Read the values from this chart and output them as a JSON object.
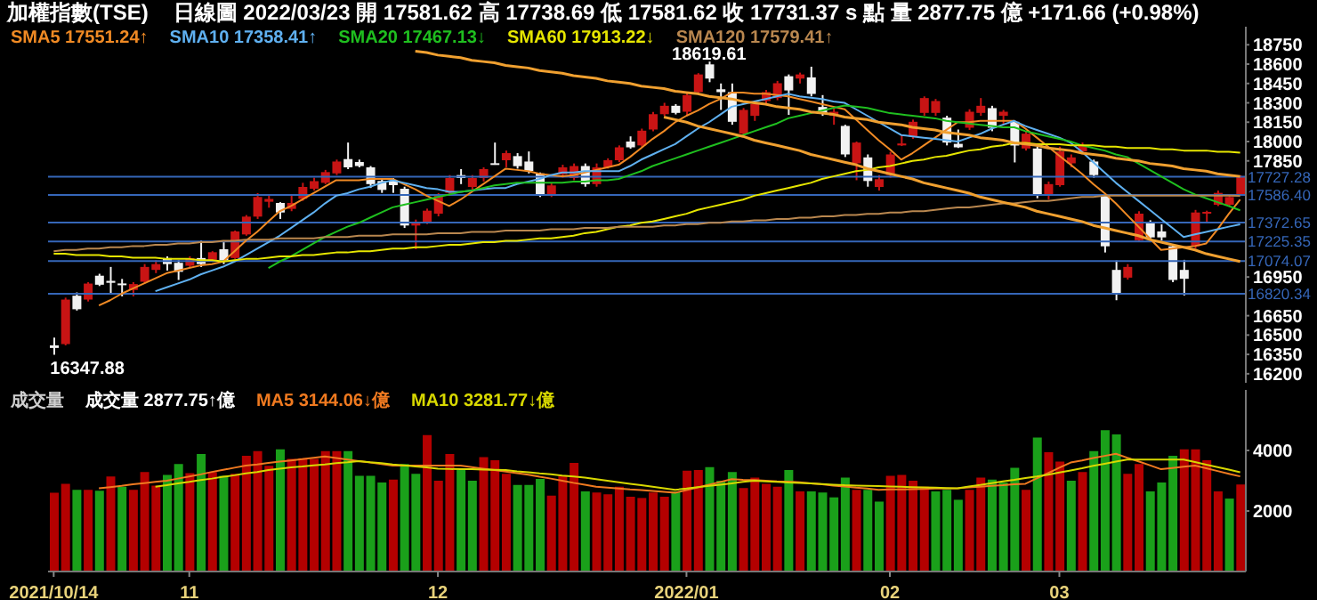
{
  "chart_data": [
    {
      "type": "candlestick",
      "title": "加權指數(TSE)",
      "subtitle": "日線圖 2022/03/23 開 17581.62 高 17738.69 低 17581.62 收 17731.37 s 點 量 2877.75 億 +171.66 (+0.98%)",
      "categories": [
        "2021/10/14",
        null,
        null,
        null,
        null,
        null,
        null,
        null,
        null,
        null,
        null,
        null,
        "11",
        null,
        null,
        null,
        null,
        null,
        null,
        null,
        null,
        null,
        null,
        null,
        null,
        null,
        null,
        null,
        null,
        null,
        null,
        null,
        null,
        null,
        "12",
        null,
        null,
        null,
        null,
        null,
        null,
        null,
        null,
        null,
        null,
        null,
        null,
        null,
        null,
        null,
        null,
        null,
        null,
        null,
        null,
        null,
        "2022/01",
        null,
        null,
        null,
        null,
        null,
        null,
        null,
        null,
        null,
        null,
        null,
        null,
        null,
        null,
        null,
        null,
        null,
        "02",
        null,
        null,
        null,
        null,
        null,
        null,
        null,
        null,
        null,
        null,
        null,
        null,
        null,
        null,
        "03",
        null,
        null,
        null,
        null,
        null,
        null,
        null,
        null,
        null,
        null,
        null,
        null,
        null,
        null,
        null,
        null
      ],
      "ohlc": [
        [
          16420,
          16480,
          16347.88,
          16400
        ],
        [
          16430,
          16790,
          16420,
          16775
        ],
        [
          16805,
          16830,
          16690,
          16700
        ],
        [
          16775,
          16910,
          16760,
          16899
        ],
        [
          16960,
          16975,
          16880,
          16890
        ],
        [
          16920,
          17028,
          16820,
          16905
        ],
        [
          16900,
          16935,
          16800,
          16890
        ],
        [
          16850,
          16910,
          16800,
          16895
        ],
        [
          16913,
          17050,
          16900,
          17028
        ],
        [
          17005,
          17080,
          16980,
          17050
        ],
        [
          17097,
          17110,
          17000,
          17050
        ],
        [
          17060,
          17080,
          16927,
          16990
        ],
        [
          17037,
          17110,
          17020,
          17096
        ],
        [
          17097,
          17234,
          17028,
          17050
        ],
        [
          17083,
          17150,
          17070,
          17142
        ],
        [
          17165,
          17220,
          17050,
          17073
        ],
        [
          17097,
          17310,
          17090,
          17303
        ],
        [
          17280,
          17430,
          17270,
          17418
        ],
        [
          17418,
          17600,
          17400,
          17570
        ],
        [
          17533,
          17588,
          17487,
          17555
        ],
        [
          17524,
          17530,
          17400,
          17450
        ],
        [
          17478,
          17588,
          17460,
          17524
        ],
        [
          17556,
          17680,
          17540,
          17648
        ],
        [
          17634,
          17720,
          17620,
          17693
        ],
        [
          17680,
          17780,
          17670,
          17763
        ],
        [
          17753,
          17860,
          17740,
          17845
        ],
        [
          17864,
          17992,
          17786,
          17800
        ],
        [
          17841,
          17860,
          17800,
          17810
        ],
        [
          17800,
          17810,
          17640,
          17670
        ],
        [
          17694,
          17717,
          17602,
          17625
        ],
        [
          17694,
          17717,
          17602,
          17662
        ],
        [
          17634,
          17650,
          17330,
          17349
        ],
        [
          17349,
          17395,
          17165,
          17370
        ],
        [
          17372,
          17480,
          17360,
          17464
        ],
        [
          17441,
          17600,
          17420,
          17579
        ],
        [
          17602,
          17740,
          17590,
          17717
        ],
        [
          17740,
          17786,
          17670,
          17717
        ],
        [
          17648,
          17740,
          17620,
          17717
        ],
        [
          17717,
          17800,
          17690,
          17786
        ],
        [
          17832,
          17992,
          17820,
          17826
        ],
        [
          17855,
          17930,
          17800,
          17910
        ],
        [
          17887,
          17910,
          17790,
          17809
        ],
        [
          17845,
          17923,
          17753,
          17772
        ],
        [
          17753,
          17760,
          17570,
          17588
        ],
        [
          17579,
          17680,
          17570,
          17660
        ],
        [
          17746,
          17820,
          17720,
          17800
        ],
        [
          17717,
          17830,
          17700,
          17810
        ],
        [
          17810,
          17830,
          17650,
          17670
        ],
        [
          17670,
          17830,
          17650,
          17800
        ],
        [
          17800,
          17870,
          17790,
          17855
        ],
        [
          17855,
          17970,
          17840,
          17955
        ],
        [
          18000,
          18040,
          17945,
          17955
        ],
        [
          17970,
          18100,
          17960,
          18084
        ],
        [
          18093,
          18230,
          18080,
          18212
        ],
        [
          18212,
          18300,
          18200,
          18277
        ],
        [
          18277,
          18290,
          18210,
          18222
        ],
        [
          18231,
          18383,
          18199,
          18360
        ],
        [
          18383,
          18530,
          18370,
          18520
        ],
        [
          18598,
          18619.61,
          18460,
          18488
        ],
        [
          18405,
          18450,
          18245,
          18383
        ],
        [
          18383,
          18450,
          18130,
          18153
        ],
        [
          18061,
          18260,
          18040,
          18245
        ],
        [
          18199,
          18310,
          18160,
          18290
        ],
        [
          18314,
          18400,
          18290,
          18383
        ],
        [
          18337,
          18470,
          18320,
          18452
        ],
        [
          18506,
          18520,
          18207,
          18396
        ],
        [
          18488,
          18534,
          18450,
          18520
        ],
        [
          18497,
          18580,
          18350,
          18369
        ],
        [
          18268,
          18360,
          18199,
          18222
        ],
        [
          18199,
          18268,
          18130,
          18231
        ],
        [
          18121,
          18130,
          17880,
          17900
        ],
        [
          17831,
          18000,
          17700,
          17992
        ],
        [
          17877,
          17900,
          17650,
          17694
        ],
        [
          17648,
          17740,
          17620,
          17708
        ],
        [
          17740,
          17920,
          17720,
          17900
        ],
        [
          17970,
          18052,
          17965,
          17985
        ],
        [
          18038,
          18170,
          18020,
          18153
        ],
        [
          18222,
          18350,
          18200,
          18337
        ],
        [
          18222,
          18330,
          18199,
          18314
        ],
        [
          18185,
          18200,
          17970,
          17992
        ],
        [
          17982,
          18093,
          17950,
          17955
        ],
        [
          18107,
          18250,
          18090,
          18231
        ],
        [
          18222,
          18337,
          18199,
          18277
        ],
        [
          18259,
          18277,
          18080,
          18107
        ],
        [
          18199,
          18245,
          18130,
          18231
        ],
        [
          18153,
          18160,
          17838,
          17969
        ],
        [
          17946,
          18080,
          17930,
          18061
        ],
        [
          17946,
          17960,
          17560,
          17579
        ],
        [
          17579,
          17690,
          17550,
          17670
        ],
        [
          17662,
          17960,
          17650,
          17923
        ],
        [
          17831,
          17900,
          17800,
          17877
        ],
        [
          17923,
          17992,
          17900,
          17969
        ],
        [
          17845,
          17860,
          17720,
          17740
        ],
        [
          17579,
          17590,
          17140,
          17188
        ],
        [
          17005,
          17078,
          16770,
          16821
        ],
        [
          16945,
          17050,
          16930,
          17028
        ],
        [
          17235,
          17460,
          17220,
          17441
        ],
        [
          17372,
          17390,
          17240,
          17257
        ],
        [
          17303,
          17358,
          17234,
          17257
        ],
        [
          17188,
          17200,
          16910,
          16927
        ],
        [
          17005,
          17083,
          16807,
          16936
        ],
        [
          17188,
          17470,
          17170,
          17450
        ],
        [
          17441,
          17464,
          17372,
          17455
        ],
        [
          17510,
          17620,
          17500,
          17602
        ],
        [
          17510,
          17590,
          17500,
          17570
        ],
        [
          17581.62,
          17738.69,
          17581.62,
          17731.37
        ]
      ],
      "series": [
        {
          "name": "SMA5 17551.24↑",
          "type": "line",
          "color": "#f08a24",
          "values": [
            null,
            null,
            null,
            null,
            16730,
            16770,
            16820,
            16860,
            16900,
            16940,
            16980,
            17000,
            17020,
            17040,
            17050,
            17070,
            17150,
            17230,
            17300,
            17380,
            17460,
            17500,
            17550,
            17600,
            17650,
            17700,
            17700,
            17700,
            17710,
            17710,
            17710,
            17670,
            17630,
            17580,
            17540,
            17500,
            17550,
            17610,
            17670,
            17730,
            17790,
            17780,
            17770,
            17750,
            17740,
            17730,
            17740,
            17760,
            17780,
            17800,
            17820,
            17880,
            17950,
            18020,
            18080,
            18150,
            18200,
            18240,
            18290,
            18330,
            18380,
            18380,
            18370,
            18370,
            18360,
            18350,
            18330,
            18310,
            18290,
            18270,
            18250,
            18170,
            18090,
            18010,
            17940,
            17860,
            17910,
            17970,
            18030,
            18090,
            18150,
            18150,
            18160,
            18160,
            18160,
            18160,
            18100,
            18030,
            17960,
            17890,
            17820,
            17750,
            17670,
            17600,
            17520,
            17430,
            17340,
            17250,
            17160,
            17170,
            17180,
            17190,
            17210,
            17320,
            17440,
            17551.24
          ]
        },
        {
          "name": "SMA10 17358.41↑",
          "type": "line",
          "color": "#5fb0f0",
          "values": [
            null,
            null,
            null,
            null,
            null,
            null,
            null,
            null,
            null,
            16840,
            16870,
            16900,
            16930,
            16970,
            17000,
            17030,
            17070,
            17120,
            17170,
            17220,
            17270,
            17330,
            17390,
            17450,
            17520,
            17580,
            17600,
            17630,
            17650,
            17680,
            17700,
            17680,
            17660,
            17640,
            17630,
            17610,
            17610,
            17620,
            17630,
            17640,
            17640,
            17670,
            17690,
            17710,
            17740,
            17760,
            17760,
            17770,
            17770,
            17770,
            17770,
            17810,
            17860,
            17900,
            17940,
            17980,
            18040,
            18100,
            18150,
            18210,
            18270,
            18290,
            18310,
            18330,
            18350,
            18370,
            18350,
            18340,
            18330,
            18310,
            18300,
            18250,
            18200,
            18150,
            18100,
            18050,
            18040,
            18030,
            18020,
            18010,
            18000,
            18030,
            18060,
            18100,
            18130,
            18160,
            18120,
            18090,
            18060,
            18030,
            17990,
            17920,
            17840,
            17760,
            17680,
            17610,
            17540,
            17470,
            17400,
            17330,
            17260,
            17280,
            17300,
            17320,
            17340,
            17358.41
          ]
        },
        {
          "name": "SMA20 17467.13↓",
          "type": "line",
          "color": "#1fbf1f",
          "values": [
            null,
            null,
            null,
            null,
            null,
            null,
            null,
            null,
            null,
            null,
            null,
            null,
            null,
            null,
            null,
            null,
            null,
            null,
            null,
            17020,
            17070,
            17110,
            17160,
            17210,
            17260,
            17300,
            17340,
            17370,
            17410,
            17450,
            17490,
            17510,
            17530,
            17550,
            17570,
            17590,
            17610,
            17620,
            17640,
            17660,
            17670,
            17680,
            17680,
            17680,
            17680,
            17680,
            17690,
            17690,
            17700,
            17700,
            17710,
            17740,
            17770,
            17810,
            17840,
            17870,
            17900,
            17930,
            17960,
            17990,
            18020,
            18050,
            18080,
            18110,
            18140,
            18180,
            18200,
            18220,
            18240,
            18260,
            18280,
            18270,
            18260,
            18240,
            18220,
            18210,
            18200,
            18190,
            18180,
            18160,
            18150,
            18140,
            18130,
            18120,
            18110,
            18110,
            18080,
            18060,
            18040,
            18020,
            18000,
            17970,
            17950,
            17930,
            17900,
            17880,
            17830,
            17780,
            17730,
            17680,
            17630,
            17590,
            17560,
            17530,
            17500,
            17467.13
          ]
        },
        {
          "name": "SMA60 17913.22↓",
          "type": "line",
          "color": "#e6e600",
          "values": [
            17130,
            17130,
            17120,
            17120,
            17120,
            17110,
            17110,
            17100,
            17100,
            17100,
            17090,
            17090,
            17090,
            17080,
            17080,
            17070,
            17080,
            17090,
            17090,
            17100,
            17110,
            17110,
            17120,
            17120,
            17130,
            17140,
            17140,
            17150,
            17150,
            17160,
            17170,
            17170,
            17180,
            17180,
            17190,
            17200,
            17200,
            17210,
            17220,
            17220,
            17230,
            17230,
            17240,
            17250,
            17250,
            17260,
            17270,
            17290,
            17300,
            17320,
            17340,
            17350,
            17370,
            17380,
            17400,
            17420,
            17440,
            17470,
            17490,
            17510,
            17530,
            17550,
            17580,
            17600,
            17620,
            17640,
            17660,
            17680,
            17710,
            17730,
            17750,
            17770,
            17780,
            17800,
            17810,
            17830,
            17850,
            17860,
            17880,
            17890,
            17910,
            17930,
            17940,
            17960,
            17970,
            17990,
            17990,
            17980,
            17980,
            17980,
            17970,
            17970,
            17970,
            17960,
            17960,
            17950,
            17950,
            17950,
            17940,
            17940,
            17930,
            17930,
            17930,
            17920,
            17920,
            17913.22
          ]
        },
        {
          "name": "SMA120 17579.41↑",
          "type": "line",
          "color": "#b9874f",
          "values": [
            17150,
            17160,
            17160,
            17170,
            17170,
            17180,
            17180,
            17190,
            17190,
            17200,
            17200,
            17210,
            17210,
            17220,
            17220,
            17230,
            17230,
            17240,
            17240,
            17240,
            17250,
            17250,
            17250,
            17250,
            17260,
            17260,
            17260,
            17270,
            17270,
            17270,
            17280,
            17280,
            17280,
            17280,
            17290,
            17290,
            17290,
            17300,
            17300,
            17300,
            17310,
            17310,
            17310,
            17310,
            17320,
            17320,
            17320,
            17330,
            17330,
            17330,
            17340,
            17340,
            17340,
            17340,
            17350,
            17350,
            17360,
            17360,
            17370,
            17370,
            17380,
            17380,
            17390,
            17390,
            17400,
            17400,
            17410,
            17410,
            17420,
            17420,
            17430,
            17430,
            17440,
            17440,
            17450,
            17450,
            17460,
            17460,
            17470,
            17480,
            17490,
            17490,
            17500,
            17510,
            17520,
            17520,
            17530,
            17540,
            17540,
            17550,
            17560,
            17570,
            17570,
            17580,
            17580,
            17580,
            17580,
            17580,
            17580,
            17580,
            17580,
            17580,
            17580,
            17580,
            17580,
            17579.41
          ]
        },
        {
          "type": "line",
          "color": "#f0a030",
          "values": [
            null,
            null,
            null,
            null,
            null,
            null,
            null,
            null,
            null,
            null,
            null,
            null,
            null,
            null,
            null,
            null,
            null,
            null,
            null,
            null,
            null,
            null,
            null,
            null,
            null,
            null,
            null,
            null,
            null,
            null,
            null,
            null,
            18700,
            18690,
            18670,
            18660,
            18650,
            18630,
            18620,
            18610,
            18590,
            18580,
            18570,
            18550,
            18540,
            18530,
            18510,
            18500,
            18490,
            18470,
            18460,
            18450,
            18430,
            18420,
            18410,
            18390,
            18380,
            18370,
            18350,
            18340,
            18330,
            18310,
            18300,
            18290,
            18270,
            18260,
            18250,
            18230,
            18220,
            18210,
            18190,
            18180,
            18170,
            18150,
            18140,
            18130,
            18110,
            18100,
            18090,
            18070,
            18060,
            18050,
            18030,
            18020,
            18010,
            17990,
            17980,
            17970,
            17950,
            17940,
            17930,
            17910,
            17900,
            17890,
            17870,
            17860,
            17850,
            17830,
            17820,
            17810,
            17790,
            17780,
            17770,
            17750,
            17740,
            17730
          ]
        },
        {
          "type": "line",
          "color": "#f0a030",
          "values": [
            null,
            null,
            null,
            null,
            null,
            null,
            null,
            null,
            null,
            null,
            null,
            null,
            null,
            null,
            null,
            null,
            null,
            null,
            null,
            null,
            null,
            null,
            null,
            null,
            null,
            null,
            null,
            null,
            null,
            null,
            null,
            null,
            null,
            null,
            null,
            null,
            null,
            null,
            null,
            null,
            null,
            null,
            null,
            null,
            null,
            null,
            null,
            null,
            null,
            null,
            null,
            null,
            null,
            null,
            18190,
            18170,
            18150,
            18120,
            18100,
            18080,
            18060,
            18040,
            18010,
            17990,
            17970,
            17950,
            17930,
            17900,
            17880,
            17860,
            17840,
            17820,
            17790,
            17770,
            17750,
            17730,
            17710,
            17680,
            17660,
            17640,
            17620,
            17600,
            17570,
            17550,
            17530,
            17510,
            17490,
            17460,
            17440,
            17420,
            17400,
            17380,
            17350,
            17330,
            17310,
            17290,
            17270,
            17240,
            17220,
            17200,
            17180,
            17160,
            17130,
            17110,
            17090,
            17070
          ]
        }
      ],
      "ref_lines": [
        {
          "axis": "y",
          "value": 17727.28,
          "label": "17727.28",
          "color": "#3566b8"
        },
        {
          "axis": "y",
          "value": 17586.4,
          "label": "17586.40",
          "color": "#3566b8"
        },
        {
          "axis": "y",
          "value": 17372.65,
          "label": "17372.65",
          "color": "#3566b8"
        },
        {
          "axis": "y",
          "value": 17225.35,
          "label": "17225.35",
          "color": "#3566b8"
        },
        {
          "axis": "y",
          "value": 17074.07,
          "label": "17074.07",
          "color": "#3566b8"
        },
        {
          "axis": "y",
          "value": 16820.34,
          "label": "16820.34",
          "color": "#3566b8"
        }
      ],
      "annotations": [
        {
          "text": "18619.61",
          "y": 18619.61
        },
        {
          "text": "16347.88",
          "x": "2021/10/14",
          "y": 16347.88
        }
      ],
      "ylim": [
        16130,
        18890
      ],
      "yticks": [
        16200,
        16350,
        16500,
        16650,
        16950,
        17850,
        18000,
        18150,
        18300,
        18450,
        18600,
        18750
      ],
      "tick_labels": "y",
      "legend": "top left",
      "grid": false
    },
    {
      "type": "bar",
      "title": "成交量",
      "categories": [
        "2021/10/14",
        null,
        null,
        null,
        null,
        null,
        null,
        null,
        null,
        null,
        null,
        null,
        "11",
        null,
        null,
        null,
        null,
        null,
        null,
        null,
        null,
        null,
        null,
        null,
        null,
        null,
        null,
        null,
        null,
        null,
        null,
        null,
        null,
        null,
        "12",
        null,
        null,
        null,
        null,
        null,
        null,
        null,
        null,
        null,
        null,
        null,
        null,
        null,
        null,
        null,
        null,
        null,
        null,
        null,
        null,
        null,
        "2022/01",
        null,
        null,
        null,
        null,
        null,
        null,
        null,
        null,
        null,
        null,
        null,
        null,
        null,
        null,
        null,
        null,
        null,
        "02",
        null,
        null,
        null,
        null,
        null,
        null,
        null,
        null,
        null,
        null,
        null,
        null,
        null,
        null,
        "03",
        null,
        null,
        null,
        null,
        null,
        null,
        null,
        null,
        null,
        null,
        null,
        null,
        null,
        null,
        null,
        null
      ],
      "series": [
        {
          "name": "成交量 2877.75↑億",
          "type": "bar",
          "values": [
            2600,
            2900,
            2700,
            2700,
            2670,
            3140,
            2800,
            2700,
            3290,
            2840,
            3190,
            3550,
            3250,
            3880,
            3290,
            3160,
            3230,
            3820,
            3980,
            3490,
            4040,
            3720,
            3740,
            3720,
            3980,
            3980,
            3980,
            3160,
            3160,
            2940,
            3040,
            3550,
            3230,
            4510,
            3000,
            3880,
            3350,
            3000,
            3780,
            3680,
            3230,
            2860,
            2860,
            3060,
            2510,
            3160,
            3590,
            2650,
            2610,
            2550,
            2800,
            2470,
            2430,
            2610,
            2470,
            2650,
            3330,
            3350,
            3450,
            3000,
            3290,
            2760,
            3100,
            2900,
            2800,
            3350,
            2650,
            2650,
            2610,
            2450,
            3100,
            2700,
            2700,
            2310,
            3160,
            3190,
            3000,
            2800,
            2650,
            2700,
            2370,
            2700,
            3100,
            3040,
            2940,
            3430,
            2700,
            4430,
            3940,
            3630,
            3000,
            3290,
            3980,
            4670,
            4530,
            3230,
            3550,
            2650,
            2940,
            3820,
            4040,
            4040,
            3680,
            2650,
            2410,
            2877.75
          ],
          "colors": [
            "#b40000",
            "#b40000",
            "#1aa01a",
            "#b40000",
            "#1aa01a",
            "#b40000",
            "#1aa01a",
            "#b40000",
            "#b40000",
            "#b40000",
            "#1aa01a",
            "#1aa01a",
            "#b40000",
            "#1aa01a",
            "#b40000",
            "#1aa01a",
            "#b40000",
            "#b40000",
            "#b40000",
            "#b40000",
            "#1aa01a",
            "#b40000",
            "#b40000",
            "#b40000",
            "#b40000",
            "#b40000",
            "#1aa01a",
            "#1aa01a",
            "#1aa01a",
            "#1aa01a",
            "#b40000",
            "#1aa01a",
            "#1aa01a",
            "#b40000",
            "#b40000",
            "#b40000",
            "#1aa01a",
            "#1aa01a",
            "#b40000",
            "#b40000",
            "#b40000",
            "#1aa01a",
            "#1aa01a",
            "#1aa01a",
            "#b40000",
            "#b40000",
            "#b40000",
            "#1aa01a",
            "#b40000",
            "#b40000",
            "#b40000",
            "#b40000",
            "#b40000",
            "#b40000",
            "#b40000",
            "#1aa01a",
            "#b40000",
            "#b40000",
            "#1aa01a",
            "#1aa01a",
            "#1aa01a",
            "#b40000",
            "#b40000",
            "#b40000",
            "#b40000",
            "#1aa01a",
            "#b40000",
            "#1aa01a",
            "#1aa01a",
            "#1aa01a",
            "#1aa01a",
            "#b40000",
            "#1aa01a",
            "#1aa01a",
            "#b40000",
            "#b40000",
            "#b40000",
            "#b40000",
            "#1aa01a",
            "#1aa01a",
            "#1aa01a",
            "#b40000",
            "#b40000",
            "#1aa01a",
            "#1aa01a",
            "#1aa01a",
            "#b40000",
            "#1aa01a",
            "#b40000",
            "#b40000",
            "#1aa01a",
            "#b40000",
            "#1aa01a",
            "#1aa01a",
            "#1aa01a",
            "#b40000",
            "#b40000",
            "#1aa01a",
            "#1aa01a",
            "#1aa01a",
            "#b40000",
            "#b40000",
            "#b40000",
            "#b40000",
            "#1aa01a",
            "#b40000"
          ]
        },
        {
          "name": "MA5 3144.06↓億",
          "type": "line",
          "color": "#f07a20",
          "values": [
            null,
            null,
            null,
            null,
            2750,
            2790,
            2830,
            2880,
            2920,
            2960,
            3000,
            3070,
            3140,
            3210,
            3290,
            3360,
            3430,
            3500,
            3540,
            3590,
            3630,
            3670,
            3710,
            3760,
            3800,
            3750,
            3700,
            3650,
            3600,
            3550,
            3500,
            3500,
            3500,
            3500,
            3500,
            3500,
            3500,
            3450,
            3400,
            3350,
            3300,
            3250,
            3200,
            3130,
            3070,
            3000,
            2930,
            2870,
            2800,
            2770,
            2740,
            2710,
            2690,
            2660,
            2630,
            2600,
            2690,
            2780,
            2870,
            2960,
            3050,
            3030,
            3020,
            3000,
            2980,
            2970,
            2950,
            2910,
            2880,
            2840,
            2810,
            2770,
            2740,
            2700,
            2710,
            2710,
            2720,
            2730,
            2740,
            2740,
            2750,
            2780,
            2800,
            2830,
            2850,
            2880,
            2900,
            3080,
            3250,
            3430,
            3600,
            3670,
            3750,
            3820,
            3890,
            3760,
            3640,
            3510,
            3380,
            3420,
            3460,
            3500,
            3410,
            3320,
            3230,
            3144.06
          ]
        },
        {
          "name": "MA10 3281.77↓億",
          "type": "line",
          "color": "#d8d800",
          "values": [
            null,
            null,
            null,
            null,
            null,
            null,
            null,
            null,
            null,
            2800,
            2850,
            2910,
            2960,
            3020,
            3070,
            3130,
            3180,
            3240,
            3290,
            3350,
            3400,
            3440,
            3470,
            3510,
            3540,
            3580,
            3610,
            3650,
            3610,
            3580,
            3540,
            3510,
            3470,
            3440,
            3400,
            3390,
            3380,
            3380,
            3370,
            3360,
            3350,
            3310,
            3280,
            3240,
            3210,
            3170,
            3140,
            3100,
            3050,
            3000,
            2950,
            2900,
            2850,
            2800,
            2750,
            2700,
            2740,
            2790,
            2830,
            2870,
            2910,
            2960,
            3000,
            2980,
            2960,
            2940,
            2930,
            2910,
            2890,
            2870,
            2850,
            2840,
            2830,
            2820,
            2810,
            2800,
            2790,
            2780,
            2770,
            2760,
            2750,
            2810,
            2860,
            2920,
            2980,
            3030,
            3090,
            3140,
            3200,
            3270,
            3340,
            3410,
            3490,
            3560,
            3630,
            3700,
            3700,
            3700,
            3700,
            3700,
            3700,
            3620,
            3530,
            3450,
            3370,
            3281.77
          ]
        }
      ],
      "ylim": [
        0,
        6000
      ],
      "yticks": [
        2000,
        4000
      ],
      "legend": "top left",
      "grid": false
    }
  ]
}
